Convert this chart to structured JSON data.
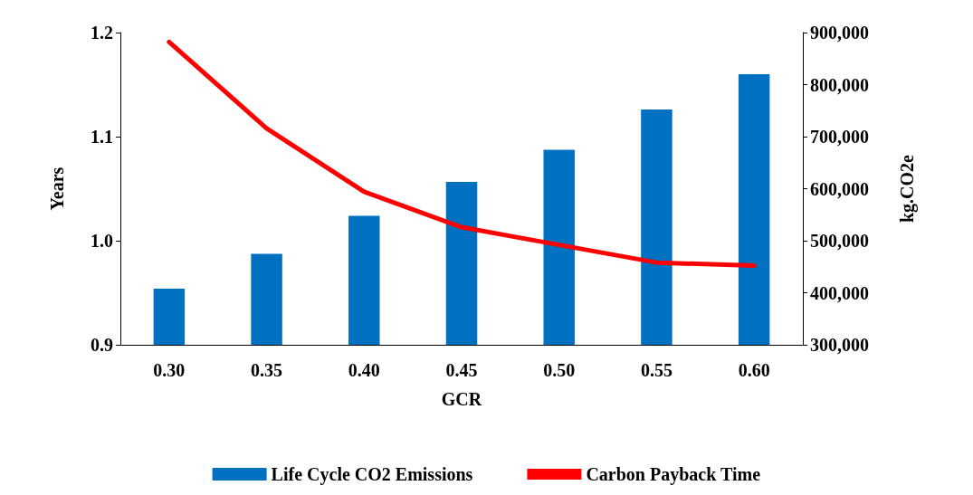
{
  "chart_data": {
    "type": "bar",
    "xlabel": "GCR",
    "ylabel": "Years",
    "y2label": "kg.CO2e",
    "categories": [
      "0.30",
      "0.35",
      "0.40",
      "0.45",
      "0.50",
      "0.55",
      "0.60"
    ],
    "series": [
      {
        "name": "Life Cycle CO2 Emissions",
        "axis": "y2",
        "color": "#0070c0",
        "values": [
          408000,
          475000,
          548000,
          613000,
          675000,
          752000,
          820000
        ]
      },
      {
        "name": "Carbon Payback Time",
        "type": "line",
        "color": "#ff0000",
        "values": [
          1.191,
          1.108,
          1.047,
          1.013,
          0.996,
          0.979,
          0.976
        ]
      }
    ],
    "ylim": [
      0.9,
      1.2
    ],
    "yticks": [
      {
        "value": 0.9,
        "label": "0.9"
      },
      {
        "value": 1,
        "label": "1.0"
      },
      {
        "value": 1.1,
        "label": "1.1"
      },
      {
        "value": 1.2,
        "label": "1.2"
      }
    ],
    "y2lim": [
      300000,
      900000
    ],
    "y2ticks": [
      {
        "value": 300000,
        "label": "300,000"
      },
      {
        "value": 400000,
        "label": "400,000"
      },
      {
        "value": 500000,
        "label": "500,000"
      },
      {
        "value": 600000,
        "label": "600,000"
      },
      {
        "value": 700000,
        "label": "700,000"
      },
      {
        "value": 800000,
        "label": "800,000"
      },
      {
        "value": 900000,
        "label": "900,000"
      }
    ],
    "grid": false,
    "legend": "bottom",
    "marker": "none",
    "line_style": "solid"
  }
}
